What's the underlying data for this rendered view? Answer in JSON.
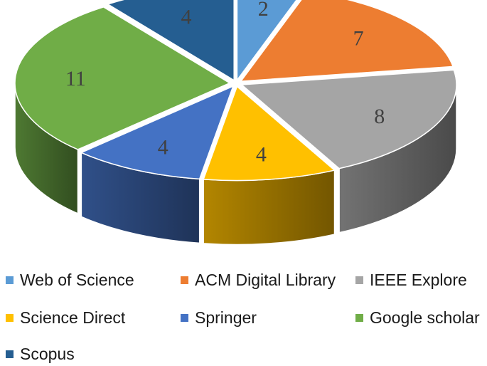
{
  "chart_data": {
    "type": "pie",
    "title": "",
    "categories": [
      "Web of Science",
      "ACM Digital Library",
      "IEEE Explore",
      "Science Direct",
      "Springer",
      "Google scholar",
      "Scopus"
    ],
    "values": [
      2,
      7,
      8,
      4,
      4,
      11,
      4
    ],
    "colors": [
      "#5b9bd5",
      "#ed7d31",
      "#a5a5a5",
      "#ffc000",
      "#4472c4",
      "#70ad47",
      "#255e91"
    ],
    "style": "3d-exploded",
    "legend_position": "bottom",
    "data_labels": [
      "2",
      "7",
      "8",
      "4",
      "4",
      "11",
      "4"
    ]
  }
}
